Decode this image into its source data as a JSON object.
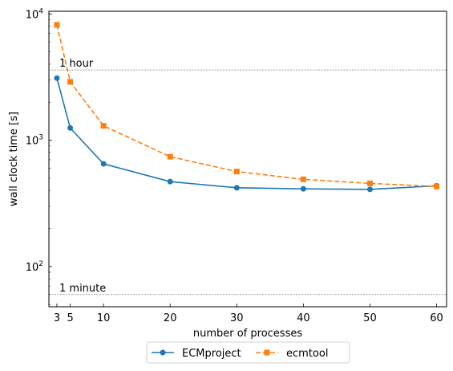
{
  "chart_data": {
    "type": "line",
    "x": [
      3,
      5,
      10,
      20,
      30,
      40,
      50,
      60
    ],
    "xlabel": "number of processes",
    "ylabel": "wall clock time [s]",
    "yscale": "log",
    "xlim": [
      1.8,
      61.5
    ],
    "ylim": [
      48,
      10500
    ],
    "xticks": [
      3,
      5,
      10,
      20,
      30,
      40,
      50,
      60
    ],
    "xtick_labels": [
      "3",
      "5",
      "10",
      "20",
      "30",
      "40",
      "50",
      "60"
    ],
    "yticks": [
      100,
      1000,
      10000
    ],
    "ytick_labels": [
      {
        "base": "10",
        "exp": "2"
      },
      {
        "base": "10",
        "exp": "3"
      },
      {
        "base": "10",
        "exp": "4"
      }
    ],
    "grid": false,
    "legend": "bottom-center-outside",
    "series": [
      {
        "name": "ECMproject",
        "color": "#1f77b4",
        "marker": "circle",
        "linestyle": "solid",
        "values": [
          3100,
          1250,
          650,
          470,
          420,
          412,
          408,
          435
        ]
      },
      {
        "name": "ecmtool",
        "color": "#ff7f0e",
        "marker": "square",
        "linestyle": "dashed",
        "values": [
          8200,
          2900,
          1300,
          740,
          565,
          490,
          455,
          430
        ]
      }
    ],
    "reference_lines": [
      {
        "value": 3600,
        "label": "1 hour",
        "color": "#808080"
      },
      {
        "value": 60,
        "label": "1 minute",
        "color": "#808080"
      }
    ]
  }
}
